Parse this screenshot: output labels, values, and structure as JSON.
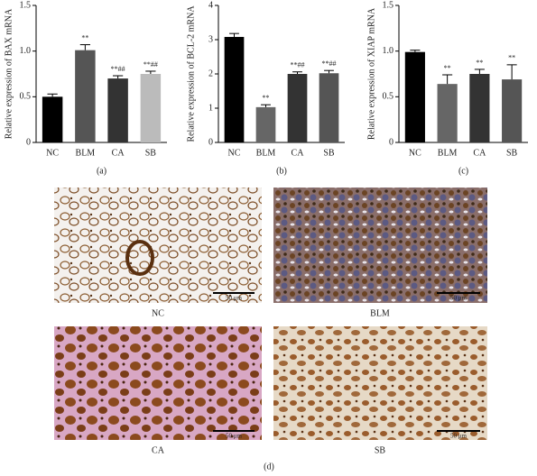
{
  "chart_data": [
    {
      "type": "bar",
      "caption": "(a)",
      "ylabel": "Relative expression of BAX mRNA",
      "categories": [
        "NC",
        "BLM",
        "CA",
        "SB"
      ],
      "values": [
        0.5,
        1.01,
        0.7,
        0.75
      ],
      "errors": [
        0.03,
        0.06,
        0.03,
        0.03
      ],
      "annotations": [
        null,
        "**",
        "**##",
        "**##"
      ],
      "colors": [
        "#000000",
        "#555555",
        "#333333",
        "#bbbbbb"
      ],
      "ylim": [
        0,
        1.5
      ],
      "yticks": [
        0,
        0.5,
        {
          "value": 1,
          "label": "1.0"
        },
        1.5
      ]
    },
    {
      "type": "bar",
      "caption": "(b)",
      "ylabel": "Relative expression of BCL-2 mRNA",
      "categories": [
        "NC",
        "BLM",
        "CA",
        "SB"
      ],
      "values": [
        3.08,
        1.03,
        2.0,
        2.02
      ],
      "errors": [
        0.1,
        0.07,
        0.06,
        0.08
      ],
      "annotations": [
        null,
        "**",
        "**##",
        "**##"
      ],
      "colors": [
        "#000000",
        "#666666",
        "#333333",
        "#555555"
      ],
      "ylim": [
        0,
        4
      ],
      "yticks": [
        0,
        1,
        2,
        3,
        4
      ]
    },
    {
      "type": "bar",
      "caption": "(c)",
      "ylabel": "Relative expression of XIAP mRNA",
      "categories": [
        "NC",
        "BLM",
        "CA",
        "SB"
      ],
      "values": [
        0.99,
        0.64,
        0.75,
        0.69
      ],
      "errors": [
        0.02,
        0.1,
        0.05,
        0.16
      ],
      "annotations": [
        null,
        "**",
        "**",
        "**"
      ],
      "colors": [
        "#000000",
        "#666666",
        "#333333",
        "#555555"
      ],
      "ylim": [
        0,
        1.5
      ],
      "yticks": [
        0,
        0.5,
        {
          "value": 1,
          "label": "1.0"
        },
        1.5
      ]
    }
  ],
  "micrographs": {
    "labels": [
      "NC",
      "BLM",
      "CA",
      "SB"
    ],
    "scale_bars": [
      "50 μm",
      "50 μm",
      "50 μm",
      "50 μm"
    ],
    "caption": "(d)"
  }
}
